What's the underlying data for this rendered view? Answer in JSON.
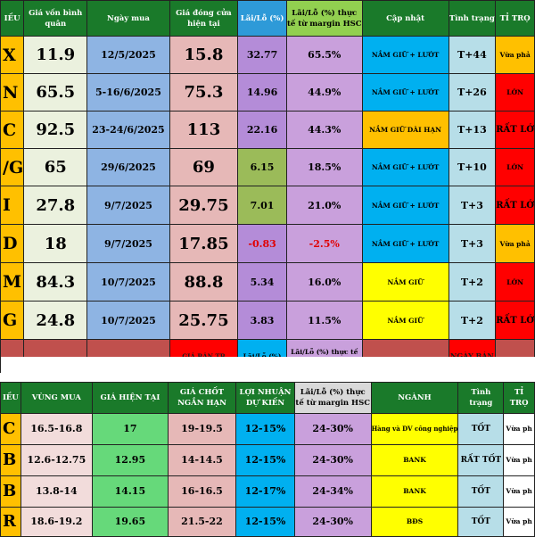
{
  "top": {
    "headers": [
      "IỀU",
      "Giá vốn bình quân",
      "Ngày mua",
      "Giá đóng cửa hiện tại",
      "Lãi/Lỗ (%)",
      "Lãi/Lỗ (%) thực tế từ margin HSC",
      "Cập nhật",
      "Tình trạng",
      "TỈ TRỌ"
    ],
    "rows": [
      {
        "ticker": "X",
        "cost": "11.9",
        "date": "12/5/2025",
        "close": "15.8",
        "pl": "32.77",
        "pl_margin": "65.5%",
        "update": "NẮM GIỮ + LƯỚT",
        "status": "T+44",
        "weight": "Vừa phả"
      },
      {
        "ticker": "N",
        "cost": "65.5",
        "date": "5-16/6/2025",
        "close": "75.3",
        "pl": "14.96",
        "pl_margin": "44.9%",
        "update": "NẮM GIỮ + LƯỚT",
        "status": "T+26",
        "weight": "LỚN"
      },
      {
        "ticker": "C",
        "cost": "92.5",
        "date": "23-24/6/2025",
        "close": "113",
        "pl": "22.16",
        "pl_margin": "44.3%",
        "update": "NẮM GIỮ DÀI HẠN",
        "status": "T+13",
        "weight": "RẤT LỚ"
      },
      {
        "ticker": "/G",
        "cost": "65",
        "date": "29/6/2025",
        "close": "69",
        "pl": "6.15",
        "pl_margin": "18.5%",
        "update": "NẮM GIỮ + LƯỚT",
        "status": "T+10",
        "weight": "LỚN"
      },
      {
        "ticker": "I",
        "cost": "27.8",
        "date": "9/7/2025",
        "close": "29.75",
        "pl": "7.01",
        "pl_margin": "21.0%",
        "update": "NẮM GIỮ + LƯỚT",
        "status": "T+3",
        "weight": "RẤT LỚ"
      },
      {
        "ticker": "D",
        "cost": "18",
        "date": "9/7/2025",
        "close": "17.85",
        "pl": "-0.83",
        "pl_margin": "-2.5%",
        "update": "NẮM GIỮ + LƯỚT",
        "status": "T+3",
        "weight": "Vừa phả"
      },
      {
        "ticker": "M",
        "cost": "84.3",
        "date": "10/7/2025",
        "close": "88.8",
        "pl": "5.34",
        "pl_margin": "16.0%",
        "update": "NẮM GIỮ",
        "status": "T+2",
        "weight": "LỚN"
      },
      {
        "ticker": "G",
        "cost": "24.8",
        "date": "10/7/2025",
        "close": "25.75",
        "pl": "3.83",
        "pl_margin": "11.5%",
        "update": "NẮM GIỮ",
        "status": "T+2",
        "weight": "RẤT LỚ"
      }
    ],
    "sold_row": {
      "sell_price": "GIÁ BÁN TB",
      "pl": "Lãi/Lỗ (%)",
      "pl_margin": "Lãi/Lỗ (%) thực tế từ margin HSC",
      "sell_date": "NGÀY BÁN"
    }
  },
  "bottom": {
    "headers": [
      "IỀU",
      "VÙNG MUA",
      "GIÁ HIỆN TẠI",
      "GIÁ CHỐT NGẮN HẠN",
      "LỢI NHUẬN DỰ KIẾN",
      "Lãi/Lỗ (%) thực tế từ margin HSC",
      "NGÀNH",
      "Tình trạng",
      "TỈ TRỌ"
    ],
    "rows": [
      {
        "ticker": "C",
        "buy_zone": "16.5-16.8",
        "current": "17",
        "target": "19-19.5",
        "expected": "12-15%",
        "pl_margin": "24-30%",
        "sector": "Hàng và DV công nghiệp",
        "status": "TỐT",
        "weight": "Vừa ph"
      },
      {
        "ticker": "B",
        "buy_zone": "12.6-12.75",
        "current": "12.95",
        "target": "14-14.5",
        "expected": "12-15%",
        "pl_margin": "24-30%",
        "sector": "BANK",
        "status": "RẤT TỐT",
        "weight": "Vừa ph"
      },
      {
        "ticker": "B",
        "buy_zone": "13.8-14",
        "current": "14.15",
        "target": "16-16.5",
        "expected": "12-17%",
        "pl_margin": "24-34%",
        "sector": "BANK",
        "status": "TỐT",
        "weight": "Vừa ph"
      },
      {
        "ticker": "R",
        "buy_zone": "18.6-19.2",
        "current": "19.65",
        "target": "21.5-22",
        "expected": "12-15%",
        "pl_margin": "24-30%",
        "sector": "BĐS",
        "status": "TỐT",
        "weight": "Vừa ph"
      }
    ]
  },
  "colors": {
    "header_green": "#1a7a2a",
    "header_blue": "#2e9ad8",
    "header_gray": "#d9d9d9",
    "header_light": "#92d050",
    "col_cost": "#ebf1de",
    "col_date": "#8eb4e3",
    "col_close": "#e6b8b7",
    "col_pl": "#b48cd8",
    "col_margin": "#c9a0dc",
    "update_blue": "#00b0f0",
    "update_orange": "#ffc000",
    "update_yellow": "#ffff00",
    "status": "#b7dee8",
    "weight_orange": "#ffc000",
    "weight_red": "#ff0000",
    "sold_row": "#c0504d",
    "buy_zone": "#f2dcdb",
    "current": "#66d97a",
    "target": "#e6b8b7",
    "expected": "#00b0f0",
    "sector_yellow": "#ffff00"
  }
}
